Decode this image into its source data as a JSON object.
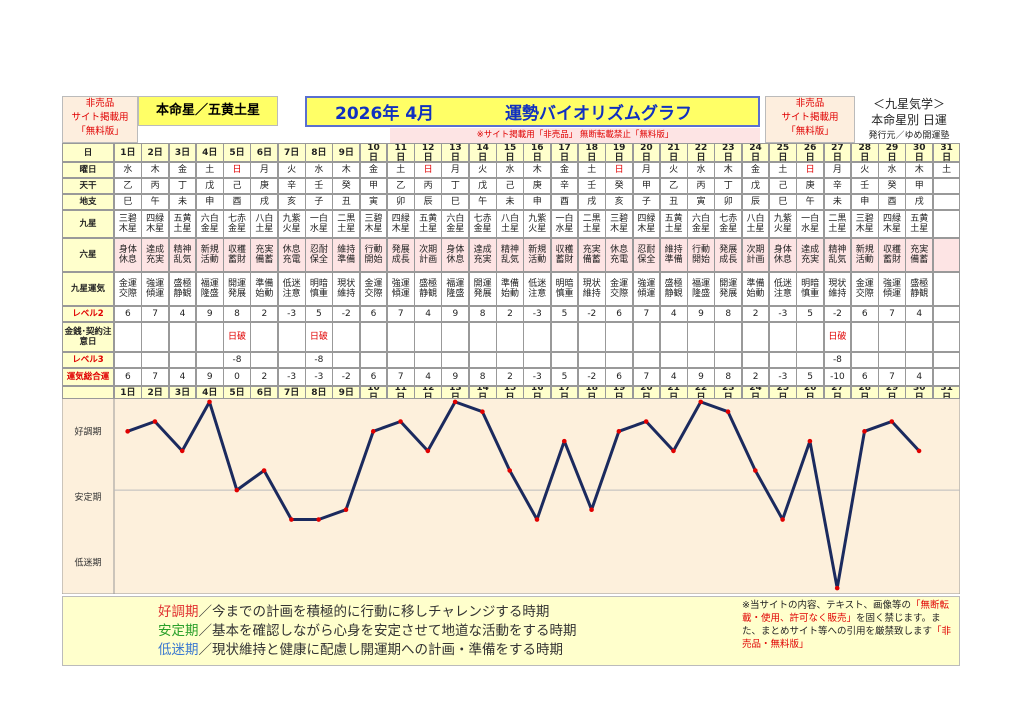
{
  "header": {
    "left_notice": [
      "非売品",
      "サイト掲載用",
      "「無料版」"
    ],
    "honmei": "本命星／五黄土星",
    "period": "2026年 4月",
    "title": "運勢バイオリズムグラフ",
    "sub_notice": "※サイト掲載用「非売品」 無断転載禁止「無料版」",
    "right_notice": [
      "非売品",
      "サイト掲載用",
      "「無料版」"
    ],
    "school": "＜九星気学＞",
    "kind": "本命星別 日運",
    "publisher": "発行元／ゆめ開運塾"
  },
  "table": {
    "row_labels": [
      "日",
      "曜日",
      "天干",
      "地支",
      "九星",
      "六星",
      "九星運気",
      "レベル2",
      "金銭･契約注意日",
      "レベル3",
      "運気総合運"
    ],
    "days": [
      "1日",
      "2日",
      "3日",
      "4日",
      "5日",
      "6日",
      "7日",
      "8日",
      "9日",
      "10日",
      "11日",
      "12日",
      "13日",
      "14日",
      "15日",
      "16日",
      "17日",
      "18日",
      "19日",
      "20日",
      "21日",
      "22日",
      "23日",
      "24日",
      "25日",
      "26日",
      "27日",
      "28日",
      "29日",
      "30日",
      "31日"
    ],
    "weekdays": [
      "水",
      "木",
      "金",
      "土",
      "日",
      "月",
      "火",
      "水",
      "木",
      "金",
      "土",
      "日",
      "月",
      "火",
      "水",
      "木",
      "金",
      "土",
      "日",
      "月",
      "火",
      "水",
      "木",
      "金",
      "土",
      "日",
      "月",
      "火",
      "水",
      "木",
      "土"
    ],
    "weekday_colors": [
      "#222",
      "#222",
      "#222",
      "#222",
      "#e00000",
      "#222",
      "#222",
      "#222",
      "#222",
      "#222",
      "#222",
      "#e00000",
      "#222",
      "#222",
      "#222",
      "#222",
      "#222",
      "#222",
      "#e00000",
      "#222",
      "#222",
      "#222",
      "#222",
      "#222",
      "#222",
      "#e00000",
      "#222",
      "#222",
      "#222",
      "#222",
      "#222"
    ],
    "stems": [
      "乙",
      "丙",
      "丁",
      "戊",
      "己",
      "庚",
      "辛",
      "壬",
      "癸",
      "甲",
      "乙",
      "丙",
      "丁",
      "戊",
      "己",
      "庚",
      "辛",
      "壬",
      "癸",
      "甲",
      "乙",
      "丙",
      "丁",
      "戊",
      "己",
      "庚",
      "辛",
      "壬",
      "癸",
      "甲",
      null
    ],
    "branches": [
      "巳",
      "午",
      "未",
      "申",
      "酉",
      "戌",
      "亥",
      "子",
      "丑",
      "寅",
      "卯",
      "辰",
      "巳",
      "午",
      "未",
      "申",
      "酉",
      "戌",
      "亥",
      "子",
      "丑",
      "寅",
      "卯",
      "辰",
      "巳",
      "午",
      "未",
      "申",
      "酉",
      "戌",
      null
    ],
    "stars": [
      "三碧木星",
      "四緑木星",
      "五黄土星",
      "六白金星",
      "七赤金星",
      "八白土星",
      "九紫火星",
      "一白水星",
      "二黒土星",
      "三碧木星",
      "四緑木星",
      "五黄土星",
      "六白金星",
      "七赤金星",
      "八白土星",
      "九紫火星",
      "一白水星",
      "二黒土星",
      "三碧木星",
      "四緑木星",
      "五黄土星",
      "六白金星",
      "七赤金星",
      "八白土星",
      "九紫火星",
      "一白水星",
      "二黒土星",
      "三碧木星",
      "四緑木星",
      "五黄土星",
      null
    ],
    "six_stars": [
      "身体休息",
      "達成充実",
      "精神乱気",
      "新規活動",
      "収穫蓄財",
      "充実備蓄",
      "休息充電",
      "忍耐保全",
      "維持準備",
      "行動開始",
      "発展成長",
      "次期計画",
      "身体休息",
      "達成充実",
      "精神乱気",
      "新規活動",
      "収穫蓄財",
      "充実備蓄",
      "休息充電",
      "忍耐保全",
      "維持準備",
      "行動開始",
      "発展成長",
      "次期計画",
      "身体休息",
      "達成充実",
      "精神乱気",
      "新規活動",
      "収穫蓄財",
      "充実備蓄",
      null
    ],
    "fortune": [
      "金運交際",
      "強運傾運",
      "盛極静観",
      "福運隆盛",
      "開運発展",
      "準備始動",
      "低迷注意",
      "明暗慎重",
      "現状維持",
      "金運交際",
      "強運傾運",
      "盛極静観",
      "福運隆盛",
      "開運発展",
      "準備始動",
      "低迷注意",
      "明暗慎重",
      "現状維持",
      "金運交際",
      "強運傾運",
      "盛極静観",
      "福運隆盛",
      "開運発展",
      "準備始動",
      "低迷注意",
      "明暗慎重",
      "現状維持",
      "金運交際",
      "強運傾運",
      "盛極静観",
      null
    ],
    "level2": [
      6,
      7,
      4,
      9,
      8,
      2,
      -3,
      5,
      -2,
      6,
      7,
      4,
      9,
      8,
      2,
      -3,
      5,
      -2,
      6,
      7,
      4,
      9,
      8,
      2,
      -3,
      5,
      -2,
      6,
      7,
      4,
      null
    ],
    "caution": [
      null,
      null,
      null,
      null,
      "日破",
      null,
      null,
      "日破",
      null,
      null,
      null,
      null,
      null,
      null,
      null,
      null,
      null,
      null,
      null,
      null,
      null,
      null,
      null,
      null,
      null,
      null,
      "日破",
      null,
      null,
      null,
      null
    ],
    "level3": [
      null,
      null,
      null,
      null,
      -8,
      null,
      null,
      -8,
      null,
      null,
      null,
      null,
      null,
      null,
      null,
      null,
      null,
      null,
      null,
      null,
      null,
      null,
      null,
      null,
      null,
      null,
      -8,
      null,
      null,
      null,
      null
    ]
  },
  "chart_data": {
    "type": "line",
    "categories": [
      "1日",
      "2日",
      "3日",
      "4日",
      "5日",
      "6日",
      "7日",
      "8日",
      "9日",
      "10日",
      "11日",
      "12日",
      "13日",
      "14日",
      "15日",
      "16日",
      "17日",
      "18日",
      "19日",
      "20日",
      "21日",
      "22日",
      "23日",
      "24日",
      "25日",
      "26日",
      "27日",
      "28日",
      "29日",
      "30日",
      "31日"
    ],
    "values": [
      6,
      7,
      4,
      9,
      0,
      2,
      -3,
      -3,
      -2,
      6,
      7,
      4,
      9,
      8,
      2,
      -3,
      5,
      -2,
      6,
      7,
      4,
      9,
      8,
      2,
      -3,
      5,
      -10,
      6,
      7,
      4,
      null
    ],
    "color": "#1b2a5e",
    "marker_color": "#e00000",
    "ylim": [
      -10.6,
      9.4
    ],
    "baseline": 0,
    "zone_labels": [
      "好調期",
      "安定期",
      "低迷期"
    ]
  },
  "footer": {
    "lines": [
      {
        "term": "好調期",
        "color": "#e03030",
        "text": "／今までの計画を積極的に行動に移しチャレンジする時期"
      },
      {
        "term": "安定期",
        "color": "#2aa02a",
        "text": "／基本を確認しながら心身を安定させて地道な活動をする時期"
      },
      {
        "term": "低迷期",
        "color": "#3a78d0",
        "text": "／現状維持と健康に配慮し開運期への計画・準備をする時期"
      }
    ],
    "notice": [
      {
        "text": "※当サイトの内容、テキスト、画像等の",
        "color": "#222"
      },
      {
        "text": "「無断転載・使用、許可なく販売」",
        "color": "#e00000"
      },
      {
        "text": "を固く禁じます。また、まとめサイト等への引用を厳禁致します",
        "color": "#222"
      },
      {
        "text": "「非売品・無料版」",
        "color": "#e00000"
      }
    ]
  }
}
